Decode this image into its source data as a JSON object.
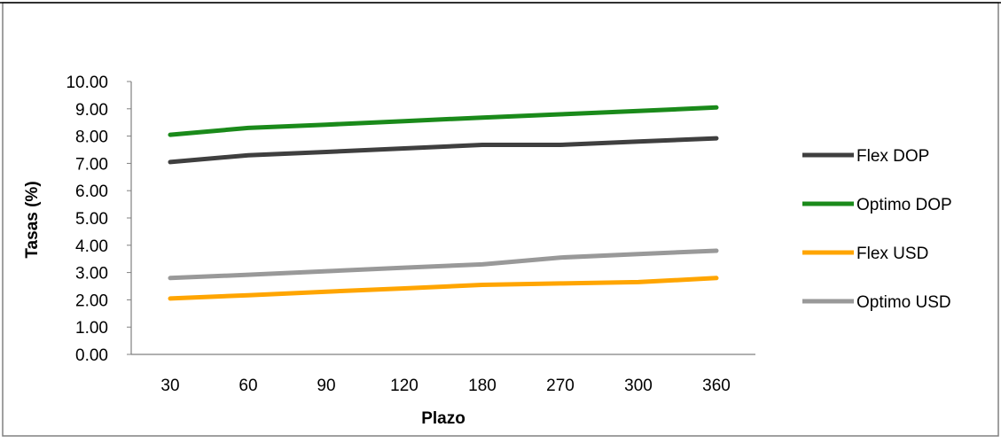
{
  "chart_data": {
    "type": "line",
    "title": "",
    "xlabel": "Plazo",
    "ylabel": "Tasas (%)",
    "categories": [
      "30",
      "60",
      "90",
      "120",
      "180",
      "270",
      "300",
      "360"
    ],
    "ylim": [
      0,
      10
    ],
    "yticks": [
      "0.00",
      "1.00",
      "2.00",
      "3.00",
      "4.00",
      "5.00",
      "6.00",
      "7.00",
      "8.00",
      "9.00",
      "10.00"
    ],
    "grid": false,
    "legend_position": "right",
    "series": [
      {
        "name": "Flex DOP",
        "color": "#3f3f3f",
        "values": [
          7.05,
          7.3,
          7.42,
          7.55,
          7.68,
          7.68,
          7.8,
          7.92
        ]
      },
      {
        "name": "Optimo DOP",
        "color": "#1a8a1a",
        "values": [
          8.05,
          8.3,
          8.42,
          8.55,
          8.68,
          8.8,
          8.92,
          9.05
        ]
      },
      {
        "name": "Flex USD",
        "color": "#ffa500",
        "values": [
          2.05,
          2.17,
          2.3,
          2.42,
          2.55,
          2.6,
          2.65,
          2.8
        ]
      },
      {
        "name": "Optimo USD",
        "color": "#999999",
        "values": [
          2.8,
          2.92,
          3.05,
          3.18,
          3.3,
          3.55,
          3.68,
          3.8
        ]
      }
    ]
  }
}
